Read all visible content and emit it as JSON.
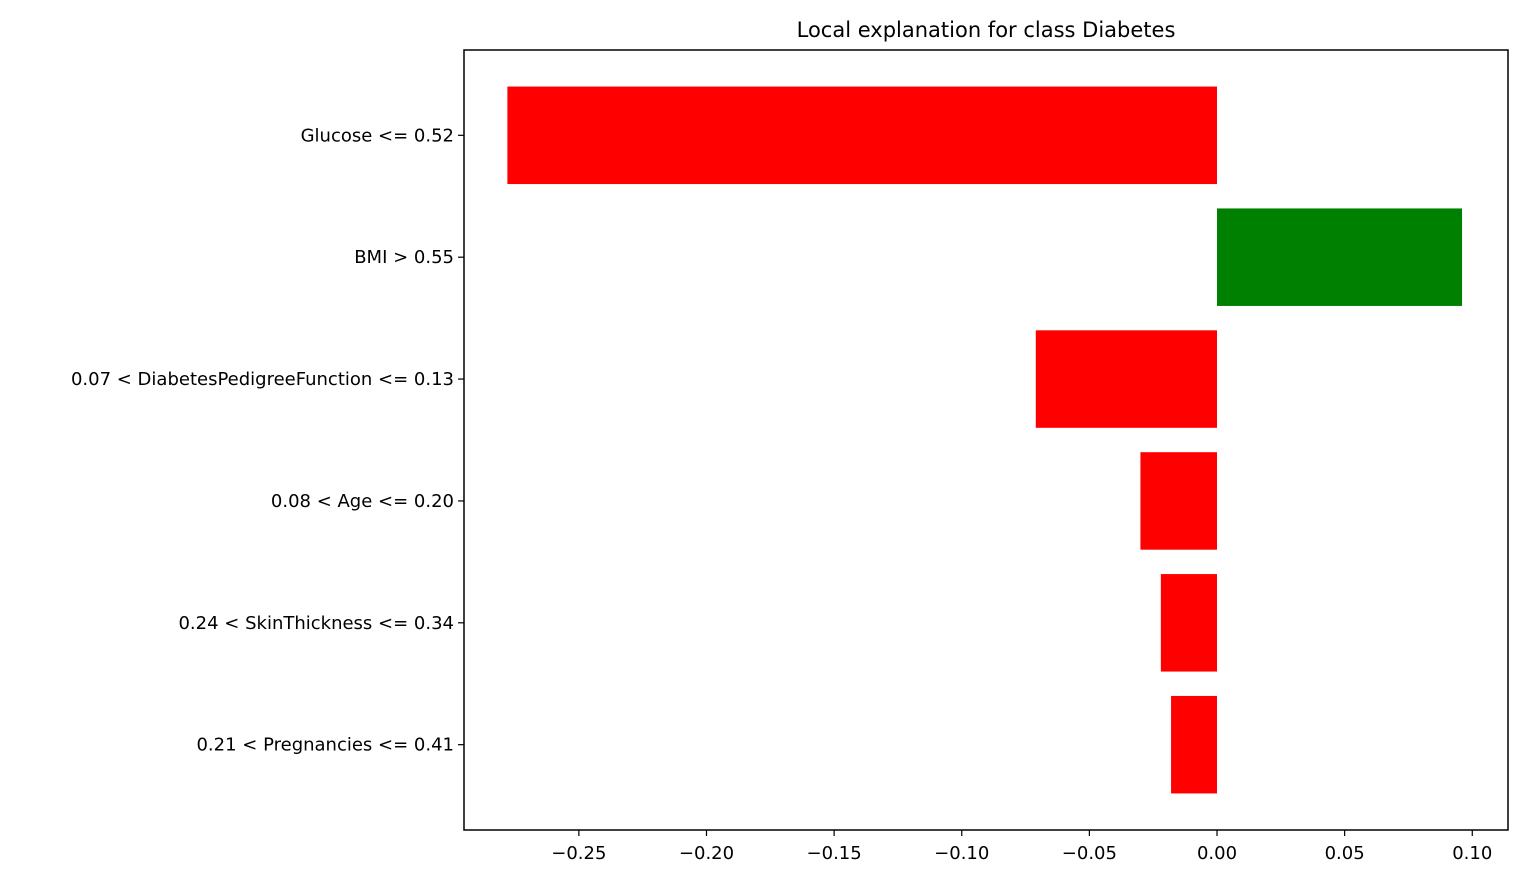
{
  "chart_data": {
    "type": "bar",
    "orientation": "horizontal",
    "title": "Local explanation for class Diabetes",
    "xlabel": "",
    "ylabel": "",
    "xlim": [
      -0.295,
      0.114
    ],
    "xticks": [
      -0.25,
      -0.2,
      -0.15,
      -0.1,
      -0.05,
      0.0,
      0.05,
      0.1
    ],
    "xtick_labels": [
      "−0.25",
      "−0.20",
      "−0.15",
      "−0.10",
      "−0.05",
      "0.00",
      "0.05",
      "0.10"
    ],
    "categories": [
      "Glucose <= 0.52",
      "BMI > 0.55",
      "0.07 < DiabetesPedigreeFunction <= 0.13",
      "0.08 < Age <= 0.20",
      "0.24 < SkinThickness <= 0.34",
      "0.21 < Pregnancies <= 0.41"
    ],
    "values": [
      -0.278,
      0.096,
      -0.071,
      -0.03,
      -0.022,
      -0.018
    ],
    "colors": {
      "positive": "#008000",
      "negative": "#ff0000"
    },
    "grid": false,
    "legend": "none"
  }
}
